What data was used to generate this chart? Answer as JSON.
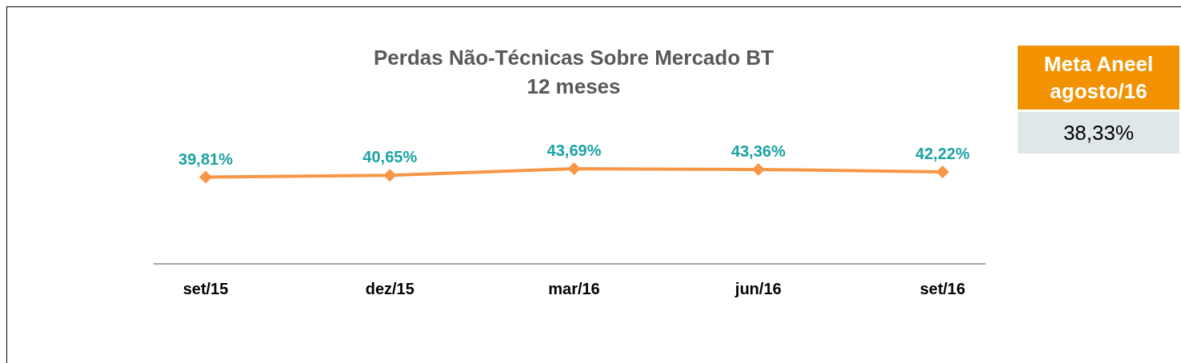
{
  "chart_data": {
    "type": "line",
    "title": "Perdas Não-Técnicas Sobre Mercado BT",
    "subtitle": "12 meses",
    "categories": [
      "set/15",
      "dez/15",
      "mar/16",
      "jun/16",
      "set/16"
    ],
    "series": [
      {
        "color": "#f79646",
        "values": [
          39.81,
          40.65,
          43.69,
          43.36,
          42.22
        ],
        "value_labels": [
          "39,81%",
          "40,65%",
          "43,69%",
          "43,36%",
          "42,22%"
        ]
      }
    ],
    "marker": "diamond",
    "tick_labels": "x",
    "annotations": [
      "Meta Aneel agosto/16",
      "38,33%"
    ]
  }
}
